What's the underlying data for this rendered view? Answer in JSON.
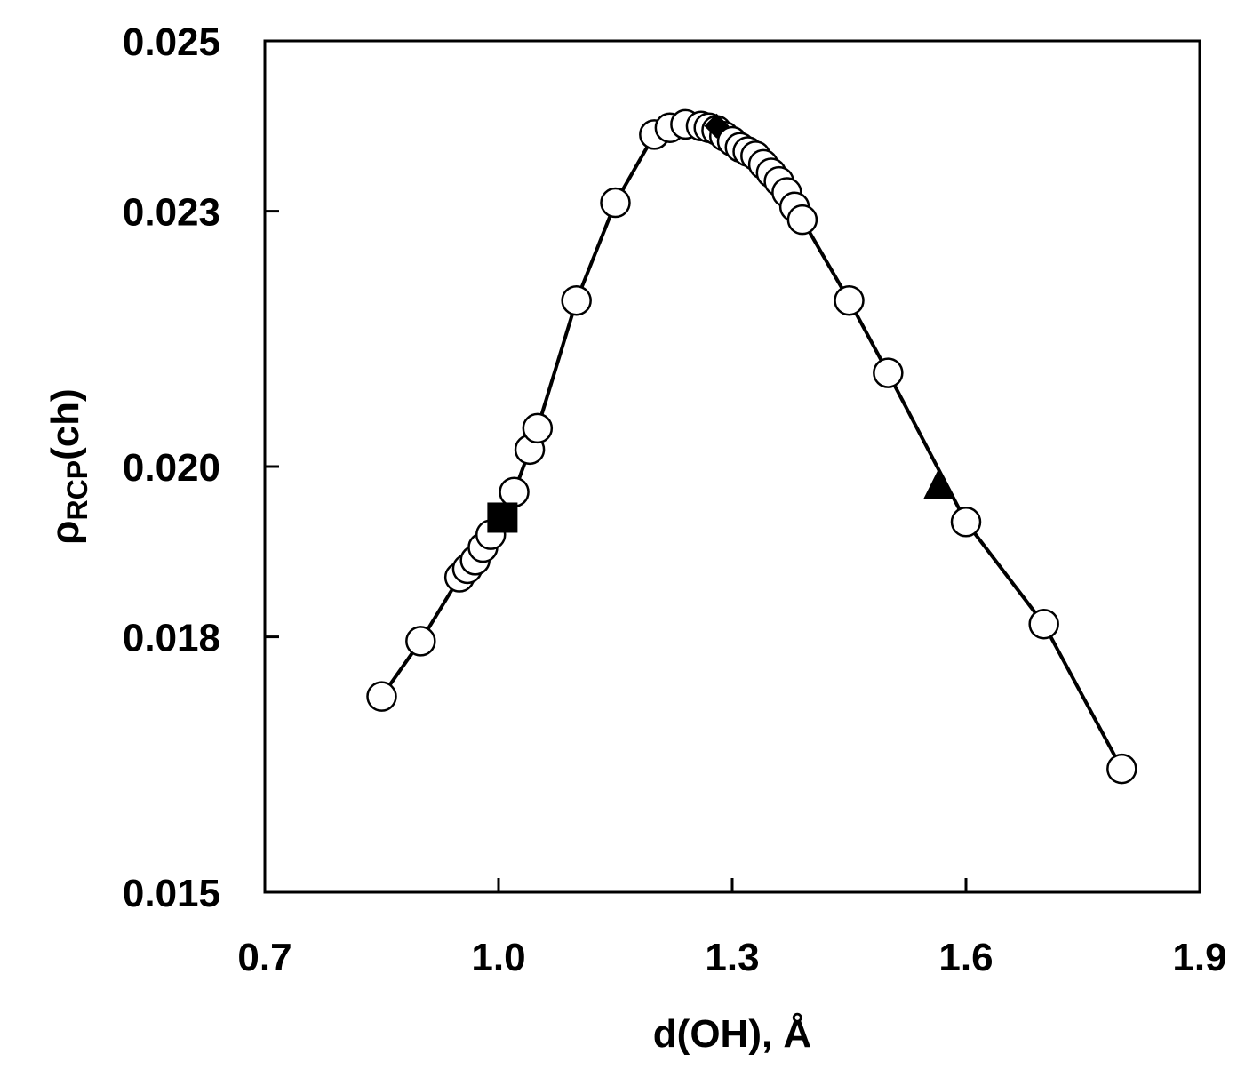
{
  "chart_data": {
    "type": "scatter",
    "xlabel": "d(OH), Å",
    "ylabel_main": "ρ",
    "ylabel_sub": "RCP",
    "ylabel_suffix": "(ch)",
    "xlim": [
      0.7,
      1.9
    ],
    "ylim": [
      0.015,
      0.025
    ],
    "x_ticks": [
      0.7,
      1.0,
      1.3,
      1.6,
      1.9
    ],
    "x_tick_labels": [
      "0.7",
      "1.0",
      "1.3",
      "1.6",
      "1.9"
    ],
    "y_ticks": [
      0.015,
      0.018,
      0.02,
      0.023,
      0.025
    ],
    "y_tick_labels": [
      "0.015",
      "0.018",
      "0.020",
      "0.023",
      "0.025"
    ],
    "grid": false,
    "series": [
      {
        "marker": "open-circle",
        "line": true,
        "x": [
          0.85,
          0.9,
          0.95,
          0.96,
          0.97,
          0.98,
          0.99,
          1.02,
          1.04,
          1.05,
          1.1,
          1.15,
          1.2,
          1.22,
          1.24,
          1.26,
          1.27,
          1.28,
          1.29,
          1.3,
          1.31,
          1.32,
          1.33,
          1.34,
          1.35,
          1.36,
          1.37,
          1.38,
          1.39,
          1.45,
          1.5,
          1.6,
          1.7,
          1.8
        ],
        "y": [
          0.0173,
          0.01795,
          0.0187,
          0.0188,
          0.0189,
          0.01905,
          0.0192,
          0.0197,
          0.0202,
          0.02045,
          0.02195,
          0.0231,
          0.0239,
          0.02398,
          0.02402,
          0.024,
          0.02398,
          0.02395,
          0.02388,
          0.02382,
          0.02375,
          0.0237,
          0.02365,
          0.02355,
          0.02345,
          0.02335,
          0.02322,
          0.02305,
          0.0229,
          0.02195,
          0.0211,
          0.01935,
          0.01815,
          0.01645
        ]
      },
      {
        "marker": "filled-square",
        "line": false,
        "x": [
          1.005
        ],
        "y": [
          0.0194
        ]
      },
      {
        "marker": "filled-diamond",
        "line": false,
        "x": [
          1.28
        ],
        "y": [
          0.024
        ]
      },
      {
        "marker": "filled-triangle",
        "line": false,
        "x": [
          1.565
        ],
        "y": [
          0.0198
        ]
      }
    ]
  }
}
